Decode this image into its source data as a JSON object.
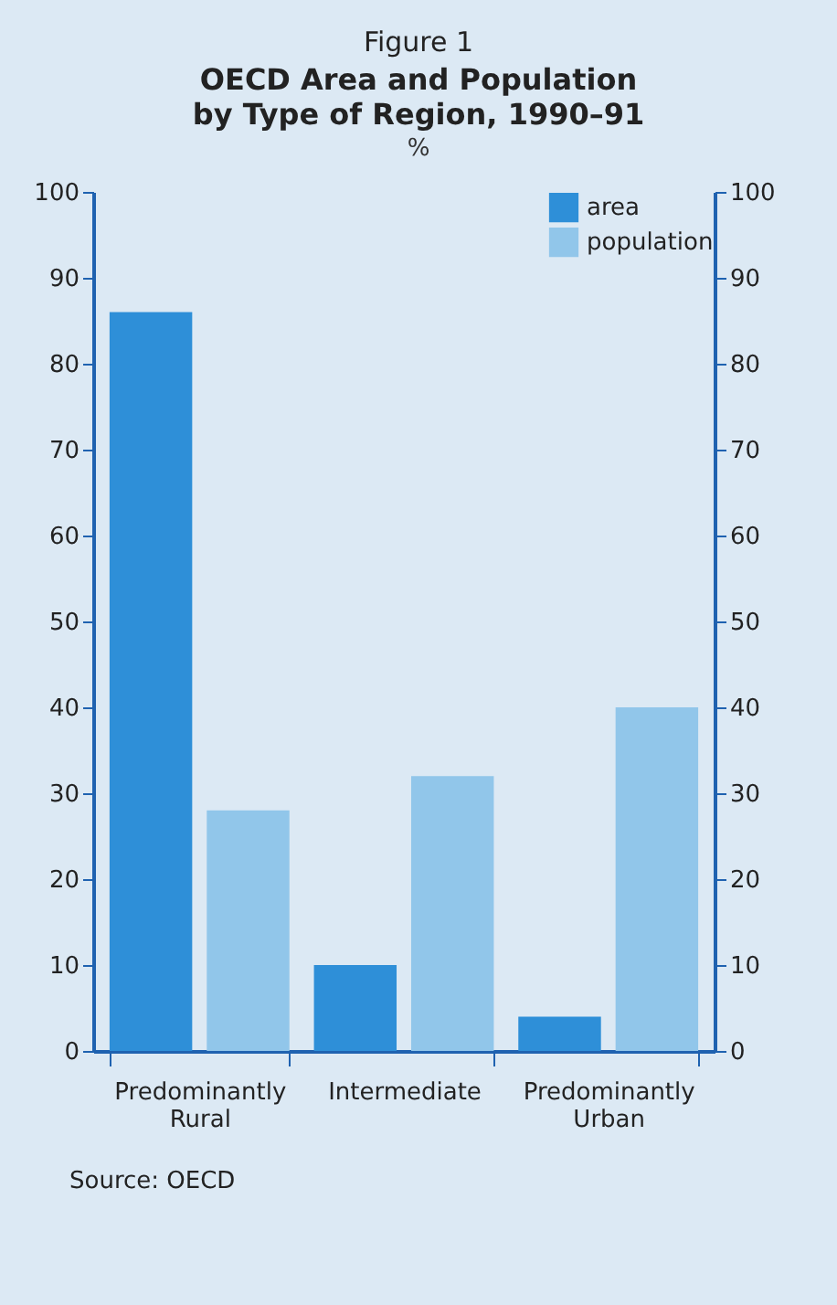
{
  "chart_data": {
    "type": "bar",
    "title": "OECD Area and Population by Type of Region, 1990–91",
    "subtitle": "%",
    "annotations": [
      "Figure 1",
      "Source: OECD"
    ],
    "categories": [
      "Predominantly Rural",
      "Intermediate",
      "Predominantly Urban"
    ],
    "series": [
      {
        "name": "area",
        "color": "#2e8fd8",
        "values": [
          86,
          10,
          4
        ]
      },
      {
        "name": "population",
        "color": "#91c6ea",
        "values": [
          28,
          32,
          40
        ]
      }
    ],
    "ylim": [
      0,
      100
    ],
    "yticks": [
      0,
      10,
      20,
      30,
      40,
      50,
      60,
      70,
      80,
      90,
      100
    ],
    "y2lim": [
      0,
      100
    ],
    "y2ticks": [
      0,
      10,
      20,
      30,
      40,
      50,
      60,
      70,
      80,
      90,
      100
    ],
    "legend": "top right",
    "grid": false
  }
}
